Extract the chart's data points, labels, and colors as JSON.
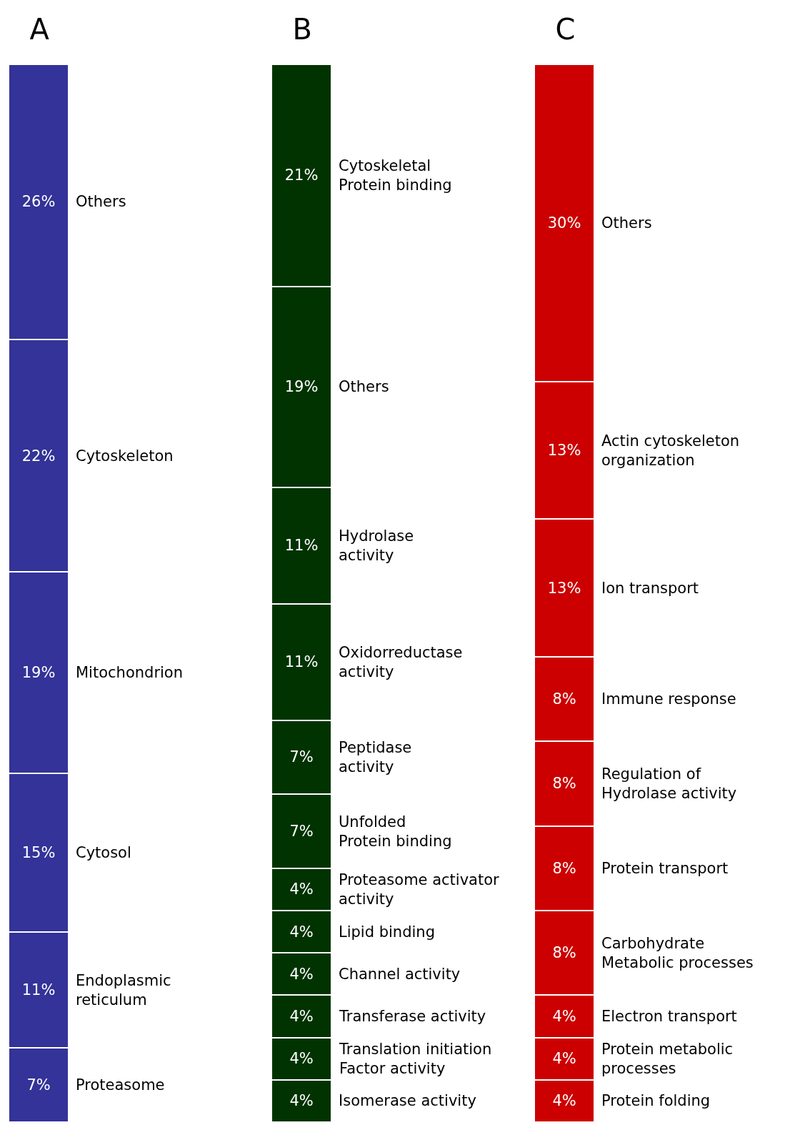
{
  "chart_data": [
    {
      "type": "bar",
      "title": "A",
      "stacked": true,
      "tick_labels": false,
      "categories": [
        null
      ],
      "series": [
        {
          "name": "Proteasome",
          "color": "#333399",
          "values": [
            7
          ],
          "value_labels": [
            "7%"
          ]
        },
        {
          "name": "Endoplasmic\nreticulum",
          "color": "#333399",
          "values": [
            11
          ],
          "value_labels": [
            "11%"
          ]
        },
        {
          "name": "Cytosol",
          "color": "#333399",
          "values": [
            15
          ],
          "value_labels": [
            "15%"
          ]
        },
        {
          "name": "Mitochondrion",
          "color": "#333399",
          "values": [
            19
          ],
          "value_labels": [
            "19%"
          ]
        },
        {
          "name": "Cytoskeleton",
          "color": "#333399",
          "values": [
            22
          ],
          "value_labels": [
            "22%"
          ]
        },
        {
          "name": "Others",
          "color": "#333399",
          "values": [
            26
          ],
          "value_labels": [
            "26%"
          ]
        }
      ]
    },
    {
      "type": "bar",
      "title": "B",
      "stacked": true,
      "tick_labels": false,
      "categories": [
        null
      ],
      "series": [
        {
          "name": "Isomerase activity",
          "color": "#003300",
          "values": [
            4
          ],
          "value_labels": [
            "4%"
          ]
        },
        {
          "name": "Translation initiation\nFactor activity",
          "color": "#003300",
          "values": [
            4
          ],
          "value_labels": [
            "4%"
          ]
        },
        {
          "name": "Transferase activity",
          "color": "#003300",
          "values": [
            4
          ],
          "value_labels": [
            "4%"
          ]
        },
        {
          "name": "Channel activity",
          "color": "#003300",
          "values": [
            4
          ],
          "value_labels": [
            "4%"
          ]
        },
        {
          "name": "Lipid binding",
          "color": "#003300",
          "values": [
            4
          ],
          "value_labels": [
            "4%"
          ]
        },
        {
          "name": "Proteasome activator\nactivity",
          "color": "#003300",
          "values": [
            4
          ],
          "value_labels": [
            "4%"
          ]
        },
        {
          "name": "Unfolded\nProtein binding",
          "color": "#003300",
          "values": [
            7
          ],
          "value_labels": [
            "7%"
          ]
        },
        {
          "name": "Peptidase\nactivity",
          "color": "#003300",
          "values": [
            7
          ],
          "value_labels": [
            "7%"
          ]
        },
        {
          "name": "Oxidorreductase\nactivity",
          "color": "#003300",
          "values": [
            11
          ],
          "value_labels": [
            "11%"
          ]
        },
        {
          "name": "Hydrolase\nactivity",
          "color": "#003300",
          "values": [
            11
          ],
          "value_labels": [
            "11%"
          ]
        },
        {
          "name": "Others",
          "color": "#003300",
          "values": [
            19
          ],
          "value_labels": [
            "19%"
          ]
        },
        {
          "name": "Cytoskeletal\nProtein binding",
          "color": "#003300",
          "values": [
            21
          ],
          "value_labels": [
            "21%"
          ]
        }
      ]
    },
    {
      "type": "bar",
      "title": "C",
      "stacked": true,
      "tick_labels": false,
      "categories": [
        null
      ],
      "series": [
        {
          "name": "Protein folding",
          "color": "#cc0000",
          "values": [
            4
          ],
          "value_labels": [
            "4%"
          ]
        },
        {
          "name": "Protein metabolic\nprocesses",
          "color": "#cc0000",
          "values": [
            4
          ],
          "value_labels": [
            "4%"
          ]
        },
        {
          "name": "Electron transport",
          "color": "#cc0000",
          "values": [
            4
          ],
          "value_labels": [
            "4%"
          ]
        },
        {
          "name": "Carbohydrate\nMetabolic processes",
          "color": "#cc0000",
          "values": [
            8
          ],
          "value_labels": [
            "8%"
          ]
        },
        {
          "name": "Protein transport",
          "color": "#cc0000",
          "values": [
            8
          ],
          "value_labels": [
            "8%"
          ]
        },
        {
          "name": "Regulation of\nHydrolase activity",
          "color": "#cc0000",
          "values": [
            8
          ],
          "value_labels": [
            "8%"
          ]
        },
        {
          "name": "Immune response",
          "color": "#cc0000",
          "values": [
            8
          ],
          "value_labels": [
            "8%"
          ]
        },
        {
          "name": "Ion transport",
          "color": "#cc0000",
          "values": [
            13
          ],
          "value_labels": [
            "13%"
          ]
        },
        {
          "name": "Actin cytoskeleton\norganization",
          "color": "#cc0000",
          "values": [
            13
          ],
          "value_labels": [
            "13%"
          ]
        },
        {
          "name": "Others",
          "color": "#cc0000",
          "values": [
            30
          ],
          "value_labels": [
            "30%"
          ]
        }
      ]
    }
  ]
}
